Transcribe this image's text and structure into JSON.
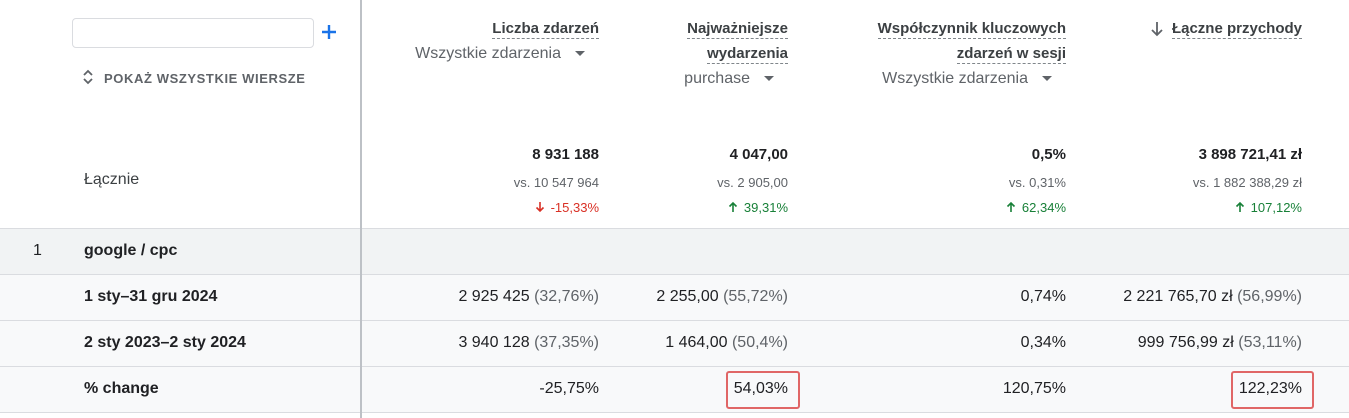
{
  "search_panel": {
    "show_all_rows": "POKAŻ WSZYSTKIE WIERSZE"
  },
  "columns": [
    {
      "title_lines": [
        "Liczba zdarzeń"
      ],
      "selector": "Wszystkie zdarzenia"
    },
    {
      "title_lines": [
        "Najważniejsze",
        "wydarzenia"
      ],
      "selector": "purchase"
    },
    {
      "title_lines": [
        "Współczynnik kluczowych",
        "zdarzeń w sesji"
      ],
      "selector": "Wszystkie zdarzenia"
    },
    {
      "title_lines": [
        "Łączne przychody"
      ],
      "sorted": "descending"
    }
  ],
  "totals": {
    "label": "Łącznie",
    "cells": [
      {
        "value": "8 931 188",
        "comparison": "vs. 10 547 964",
        "change": "-15,33%",
        "direction": "down"
      },
      {
        "value": "4 047,00",
        "comparison": "vs. 2 905,00",
        "change": "39,31%",
        "direction": "up"
      },
      {
        "value": "0,5%",
        "comparison": "vs. 0,31%",
        "change": "62,34%",
        "direction": "up"
      },
      {
        "value": "3 898 721,41 zł",
        "comparison": "vs. 1 882 388,29 zł",
        "change": "107,12%",
        "direction": "up"
      }
    ]
  },
  "rows": [
    {
      "index": "1",
      "label": "google / cpc",
      "cells": []
    },
    {
      "label": "1 sty–31 gru 2024",
      "cells": [
        {
          "value": "2 925 425",
          "share": "(32,76%)"
        },
        {
          "value": "2 255,00",
          "share": "(55,72%)"
        },
        {
          "value": "0,74%"
        },
        {
          "value": "2 221 765,70 zł",
          "share": "(56,99%)"
        }
      ]
    },
    {
      "label": "2 sty 2023–2 sty 2024",
      "cells": [
        {
          "value": "3 940 128",
          "share": "(37,35%)"
        },
        {
          "value": "1 464,00",
          "share": "(50,4%)"
        },
        {
          "value": "0,34%"
        },
        {
          "value": "999 756,99 zł",
          "share": "(53,11%)"
        }
      ]
    },
    {
      "label": "% change",
      "cells": [
        {
          "value": "-25,75%"
        },
        {
          "value": "54,03%",
          "highlighted": true
        },
        {
          "value": "120,75%"
        },
        {
          "value": "122,23%",
          "highlighted": true
        }
      ]
    }
  ]
}
